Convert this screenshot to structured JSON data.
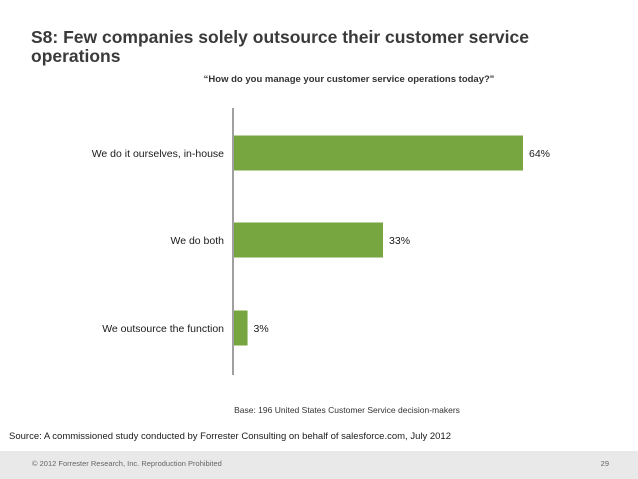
{
  "slide": {
    "title": "S8: Few companies solely outsource their customer service operations",
    "question": "“How do you manage your customer service operations today?\"",
    "base_note": "Base: 196 United States Customer Service decision-makers",
    "source": "Source: A commissioned study conducted by Forrester Consulting on behalf of salesforce.com, July 2012",
    "copyright": "© 2012 Forrester Research, Inc. Reproduction Prohibited",
    "page_number": "29"
  },
  "chart_data": {
    "type": "bar",
    "orientation": "horizontal",
    "title": "“How do you manage your customer service operations today?\"",
    "categories": [
      "We do it ourselves, in-house",
      "We do both",
      "We outsource the function"
    ],
    "values": [
      64,
      33,
      3
    ],
    "data_labels": [
      "64%",
      "33%",
      "3%"
    ],
    "unit": "%",
    "xlim": [
      0,
      64
    ],
    "xlabel": "",
    "ylabel": "",
    "grid": false,
    "legend": "none",
    "bar_color": "#77a540",
    "axis_color": "#404040"
  }
}
